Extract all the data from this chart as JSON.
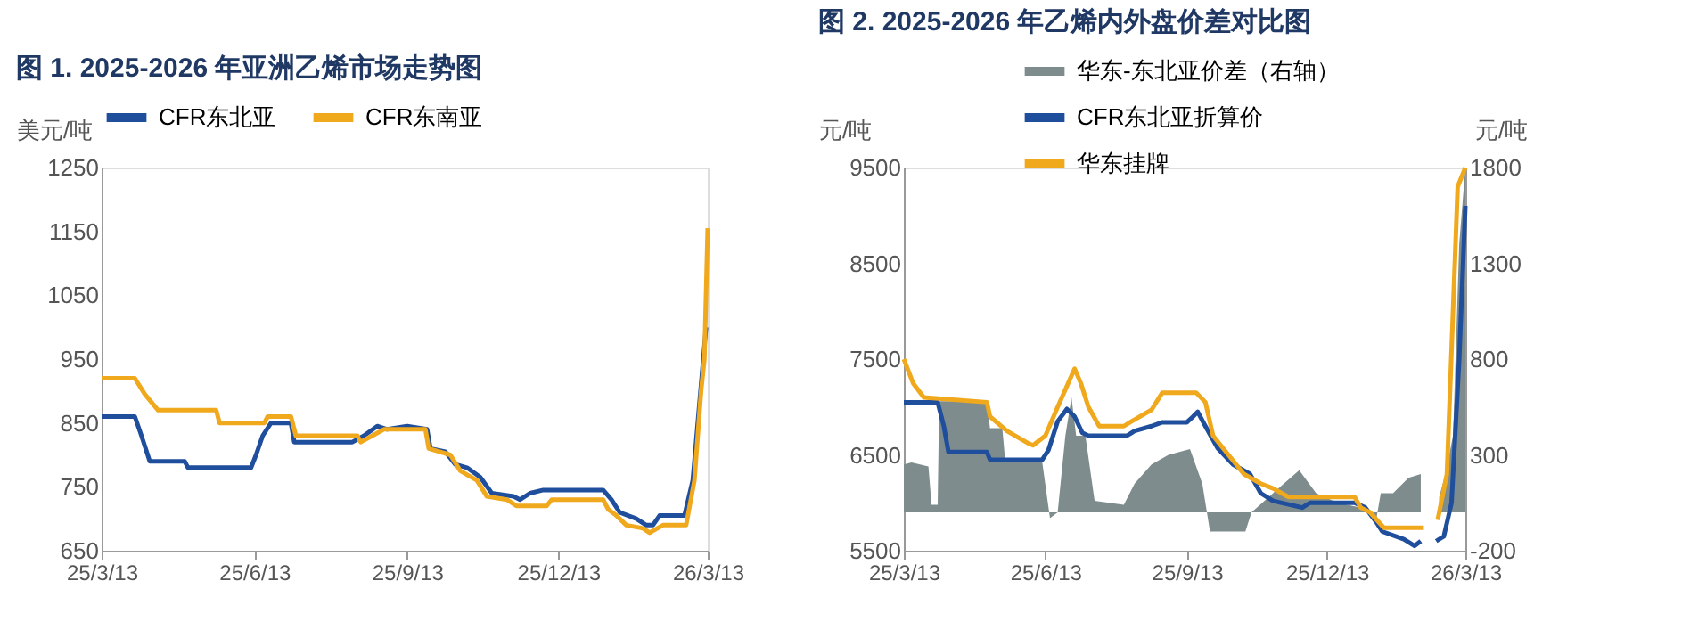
{
  "chart_data": [
    {
      "type": "line",
      "title": "图 1. 2025-2026 年亚洲乙烯市场走势图",
      "ylabel": "美元/吨",
      "xlim": [
        "2025-03-13",
        "2026-03-13"
      ],
      "xticks": [
        {
          "value": "2025-03-13",
          "label": "25/3/13"
        },
        {
          "value": "2025-06-13",
          "label": "25/6/13"
        },
        {
          "value": "2025-09-13",
          "label": "25/9/13"
        },
        {
          "value": "2025-12-13",
          "label": "25/12/13"
        },
        {
          "value": "2026-03-13",
          "label": "26/3/13"
        }
      ],
      "ylim": [
        650,
        1250
      ],
      "yticks": [
        650,
        750,
        850,
        950,
        1050,
        1150,
        1250
      ],
      "grid": false,
      "legend": "top",
      "series": [
        {
          "name": "CFR东北亚",
          "color": "#1f4e9c",
          "x": [
            "2025-03-13",
            "2025-04-02",
            "2025-04-06",
            "2025-04-11",
            "2025-05-02",
            "2025-05-04",
            "2025-06-11",
            "2025-06-14",
            "2025-06-18",
            "2025-06-23",
            "2025-07-05",
            "2025-07-07",
            "2025-08-11",
            "2025-08-18",
            "2025-08-26",
            "2025-09-01",
            "2025-09-13",
            "2025-09-25",
            "2025-09-27",
            "2025-10-06",
            "2025-10-12",
            "2025-10-19",
            "2025-10-27",
            "2025-11-03",
            "2025-11-16",
            "2025-11-20",
            "2025-11-26",
            "2025-12-04",
            "2026-01-09",
            "2026-01-14",
            "2026-01-19",
            "2026-01-29",
            "2026-02-04",
            "2026-02-08",
            "2026-02-12",
            "2026-02-27",
            "2026-03-04",
            "2026-03-12"
          ],
          "values": [
            860,
            860,
            830,
            790,
            790,
            780,
            780,
            800,
            830,
            850,
            850,
            820,
            820,
            830,
            845,
            840,
            845,
            840,
            810,
            805,
            785,
            780,
            765,
            740,
            735,
            730,
            740,
            745,
            745,
            730,
            710,
            700,
            690,
            690,
            705,
            705,
            760,
            1000
          ]
        },
        {
          "name": "CFR东南亚",
          "color": "#f0a81c",
          "x": [
            "2025-03-13",
            "2025-04-02",
            "2025-04-08",
            "2025-04-16",
            "2025-05-21",
            "2025-05-23",
            "2025-06-19",
            "2025-06-21",
            "2025-07-05",
            "2025-07-08",
            "2025-08-14",
            "2025-08-16",
            "2025-08-23",
            "2025-08-30",
            "2025-09-24",
            "2025-09-26",
            "2025-10-09",
            "2025-10-15",
            "2025-10-25",
            "2025-10-31",
            "2025-11-12",
            "2025-11-18",
            "2025-12-06",
            "2025-12-09",
            "2026-01-09",
            "2026-01-12",
            "2026-01-17",
            "2026-01-23",
            "2026-02-02",
            "2026-02-06",
            "2026-02-14",
            "2026-02-28",
            "2026-03-05",
            "2026-03-09",
            "2026-03-11",
            "2026-03-13"
          ],
          "values": [
            920,
            920,
            895,
            870,
            870,
            850,
            850,
            860,
            860,
            830,
            830,
            820,
            830,
            840,
            840,
            810,
            800,
            775,
            760,
            735,
            730,
            720,
            720,
            730,
            730,
            715,
            705,
            690,
            685,
            678,
            690,
            690,
            760,
            900,
            950,
            1155
          ]
        }
      ]
    },
    {
      "type": "line",
      "title": "图 2. 2025-2026 年乙烯内外盘价差对比图",
      "ylabel": "元/吨",
      "y2label": "元/吨",
      "xlim": [
        "2025-03-13",
        "2026-03-13"
      ],
      "xticks": [
        {
          "value": "2025-03-13",
          "label": "25/3/13"
        },
        {
          "value": "2025-06-13",
          "label": "25/6/13"
        },
        {
          "value": "2025-09-13",
          "label": "25/9/13"
        },
        {
          "value": "2025-12-13",
          "label": "25/12/13"
        },
        {
          "value": "2026-03-13",
          "label": "26/3/13"
        }
      ],
      "ylim": [
        5500,
        9500
      ],
      "yticks": [
        5500,
        6500,
        7500,
        8500,
        9500
      ],
      "y2lim": [
        -200,
        1800
      ],
      "y2ticks": [
        -200,
        300,
        800,
        1300,
        1800
      ],
      "grid": false,
      "legend": "top right",
      "series": [
        {
          "name": "华东-东北亚价差（右轴）",
          "type": "area",
          "axis": "y2",
          "color": "#7f8c8d",
          "x": [
            "2025-03-13",
            "2025-03-18",
            "2025-03-29",
            "2025-03-31",
            "2025-04-04",
            "2025-04-05",
            "2025-05-06",
            "2025-05-08",
            "2025-05-16",
            "2025-05-18",
            "2025-06-11",
            "2025-06-16",
            "2025-06-21",
            "2025-06-26",
            "2025-06-30",
            "2025-07-03",
            "2025-07-09",
            "2025-07-15",
            "2025-08-03",
            "2025-08-10",
            "2025-08-21",
            "2025-09-01",
            "2025-09-15",
            "2025-09-23",
            "2025-09-28",
            "2025-10-21",
            "2025-10-25",
            "2025-11-15",
            "2025-11-25",
            "2025-12-06",
            "2025-12-20",
            "2026-01-07",
            "2026-01-14",
            "2026-01-17",
            "2026-01-25",
            "2026-02-04",
            "2026-02-12",
            "2026-02-16",
            "2026-02-24",
            "2026-02-28",
            "2026-03-05",
            "2026-03-09",
            "2026-03-13"
          ],
          "values": [
            250,
            260,
            240,
            40,
            40,
            580,
            580,
            440,
            440,
            260,
            260,
            -30,
            0,
            400,
            600,
            400,
            400,
            60,
            40,
            150,
            250,
            300,
            330,
            150,
            -100,
            -100,
            0,
            150,
            220,
            100,
            50,
            20,
            -40,
            100,
            100,
            180,
            200,
            null,
            80,
            200,
            400,
            1400,
            1800
          ]
        },
        {
          "name": "CFR东北亚折算价",
          "color": "#1f4e9c",
          "x": [
            "2025-03-13",
            "2025-04-04",
            "2025-04-08",
            "2025-04-11",
            "2025-05-06",
            "2025-05-08",
            "2025-06-11",
            "2025-06-15",
            "2025-06-21",
            "2025-06-27",
            "2025-07-02",
            "2025-07-07",
            "2025-07-11",
            "2025-08-05",
            "2025-08-10",
            "2025-08-21",
            "2025-08-28",
            "2025-09-13",
            "2025-09-17",
            "2025-09-20",
            "2025-09-25",
            "2025-10-03",
            "2025-10-13",
            "2025-10-24",
            "2025-10-31",
            "2025-11-08",
            "2025-11-27",
            "2025-12-02",
            "2025-12-31",
            "2026-01-07",
            "2026-01-14",
            "2026-01-18",
            "2026-02-01",
            "2026-02-08",
            "2026-02-12",
            "2026-02-16",
            "2026-02-22",
            "2026-02-27",
            "2026-03-04",
            "2026-03-09",
            "2026-03-13"
          ],
          "values": [
            7050,
            7050,
            6800,
            6530,
            6530,
            6450,
            6450,
            6550,
            6850,
            6980,
            6900,
            6730,
            6700,
            6700,
            6750,
            6800,
            6840,
            6840,
            6900,
            6950,
            6800,
            6570,
            6400,
            6300,
            6100,
            6020,
            5950,
            6000,
            6000,
            5950,
            5800,
            5700,
            5620,
            5550,
            5600,
            null,
            5600,
            5650,
            6000,
            7500,
            9100
          ]
        },
        {
          "name": "华东挂牌",
          "color": "#f0a81c",
          "x": [
            "2025-03-13",
            "2025-03-19",
            "2025-03-26",
            "2025-05-06",
            "2025-05-08",
            "2025-05-19",
            "2025-06-02",
            "2025-06-05",
            "2025-06-13",
            "2025-06-21",
            "2025-07-02",
            "2025-07-06",
            "2025-07-11",
            "2025-07-18",
            "2025-08-03",
            "2025-08-08",
            "2025-08-21",
            "2025-08-28",
            "2025-09-19",
            "2025-09-25",
            "2025-09-30",
            "2025-10-10",
            "2025-10-20",
            "2025-10-31",
            "2025-11-08",
            "2025-11-18",
            "2025-12-31",
            "2026-01-04",
            "2026-01-10",
            "2026-01-19",
            "2026-02-14",
            "2026-02-18",
            "2026-02-23",
            "2026-03-01",
            "2026-03-08",
            "2026-03-13"
          ],
          "values": [
            7500,
            7250,
            7100,
            7050,
            6900,
            6750,
            6620,
            6600,
            6700,
            7000,
            7400,
            7250,
            7000,
            6800,
            6800,
            6850,
            6970,
            7150,
            7150,
            7050,
            6700,
            6500,
            6300,
            6200,
            6150,
            6060,
            6060,
            5950,
            5900,
            5740,
            5740,
            null,
            5820,
            6300,
            9300,
            9500
          ]
        }
      ]
    }
  ]
}
